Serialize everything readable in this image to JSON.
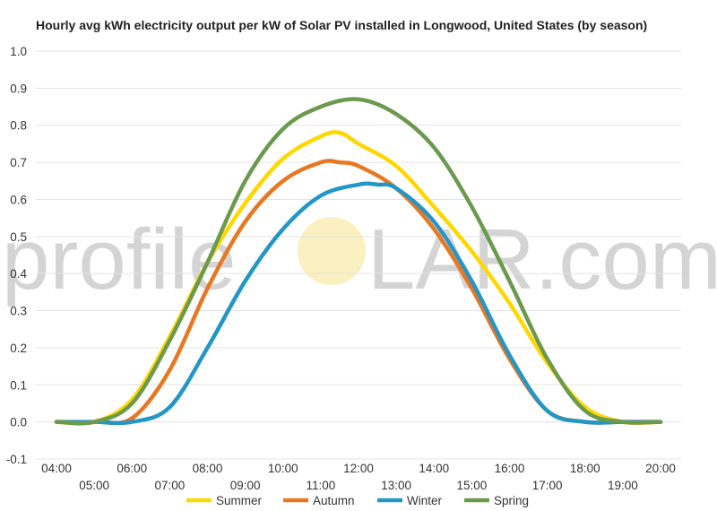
{
  "chart_data": {
    "type": "line",
    "title": "Hourly avg kWh electricity output per kW of Solar PV installed in Longwood, United States (by season)",
    "watermark": {
      "part1": "profile",
      "part2": "LAR.com"
    },
    "x_ticks": [
      "04:00",
      "05:00",
      "06:00",
      "07:00",
      "08:00",
      "09:00",
      "10:00",
      "11:00",
      "12:00",
      "13:00",
      "14:00",
      "15:00",
      "16:00",
      "17:00",
      "18:00",
      "19:00",
      "20:00"
    ],
    "y_ticks": [
      "-0.1",
      "0.0",
      "0.1",
      "0.2",
      "0.3",
      "0.4",
      "0.5",
      "0.6",
      "0.7",
      "0.8",
      "0.9",
      "1.0"
    ],
    "ylim": [
      -0.1,
      1.0
    ],
    "xlim": [
      4,
      20
    ],
    "grid": true,
    "legend_position": "bottom",
    "series": [
      {
        "name": "Summer",
        "color": "#FFD700",
        "x": [
          4,
          5,
          6,
          7,
          8,
          9,
          10,
          11,
          11.5,
          12,
          13,
          14,
          15,
          16,
          17,
          18,
          19,
          20
        ],
        "values": [
          0.0,
          0.0,
          0.06,
          0.23,
          0.43,
          0.59,
          0.71,
          0.77,
          0.78,
          0.75,
          0.69,
          0.58,
          0.46,
          0.32,
          0.16,
          0.04,
          0.0,
          0.0
        ]
      },
      {
        "name": "Autumn",
        "color": "#E87722",
        "x": [
          4,
          5,
          6,
          7,
          8,
          9,
          10,
          11,
          11.5,
          12,
          13,
          14,
          15,
          16,
          17,
          18,
          19,
          20
        ],
        "values": [
          0.0,
          0.0,
          0.01,
          0.14,
          0.36,
          0.54,
          0.65,
          0.7,
          0.7,
          0.69,
          0.63,
          0.52,
          0.36,
          0.17,
          0.03,
          0.0,
          0.0,
          0.0
        ]
      },
      {
        "name": "Winter",
        "color": "#2496C6",
        "x": [
          4,
          5,
          6,
          7,
          8,
          9,
          10,
          11,
          12,
          12.5,
          13,
          14,
          15,
          16,
          17,
          18,
          19,
          20
        ],
        "values": [
          0.0,
          0.0,
          0.0,
          0.04,
          0.2,
          0.38,
          0.52,
          0.61,
          0.64,
          0.64,
          0.63,
          0.54,
          0.38,
          0.18,
          0.03,
          0.0,
          0.0,
          0.0
        ]
      },
      {
        "name": "Spring",
        "color": "#6B9A4E",
        "x": [
          4,
          5,
          6,
          7,
          8,
          9,
          10,
          11,
          12,
          13,
          14,
          15,
          16,
          17,
          18,
          19,
          20
        ],
        "values": [
          0.0,
          0.0,
          0.05,
          0.22,
          0.43,
          0.65,
          0.79,
          0.85,
          0.87,
          0.83,
          0.74,
          0.58,
          0.38,
          0.17,
          0.03,
          0.0,
          0.0
        ]
      }
    ]
  }
}
